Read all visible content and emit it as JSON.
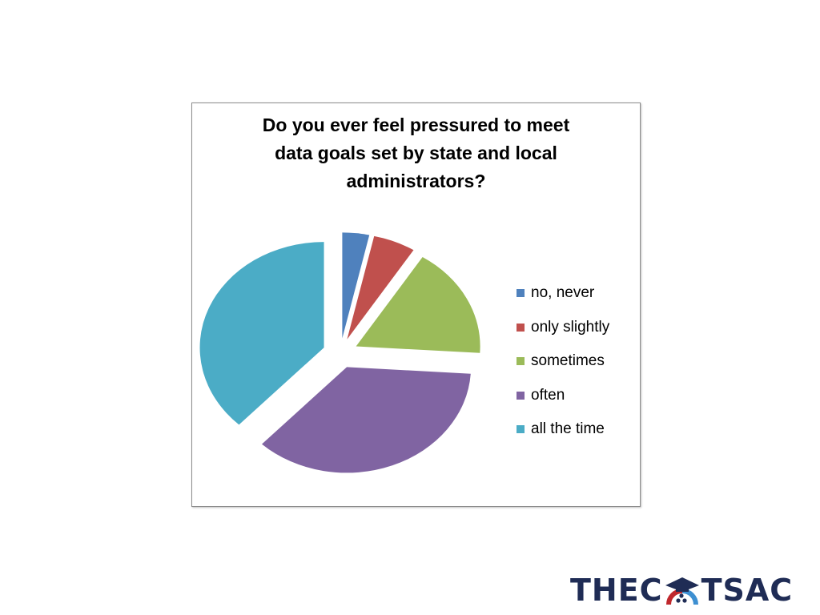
{
  "chart_data": {
    "type": "pie",
    "title_lines": [
      "Do you ever feel pressured to meet",
      "data goals set by state and local",
      "administrators?"
    ],
    "categories": [
      "no, never",
      "only slightly",
      "sometimes",
      "often",
      "all the time"
    ],
    "values": [
      3.5,
      5.5,
      17,
      36,
      38
    ],
    "colors": [
      "#4f81bd",
      "#c0504d",
      "#9bbb59",
      "#8064a2",
      "#4bacc6"
    ],
    "exploded": true,
    "legend_position": "right"
  },
  "logo": {
    "left_text": "THEC",
    "right_text": "TSAC",
    "navy": "#1f2c55",
    "red": "#c0282d",
    "blue": "#3d8fd1"
  }
}
